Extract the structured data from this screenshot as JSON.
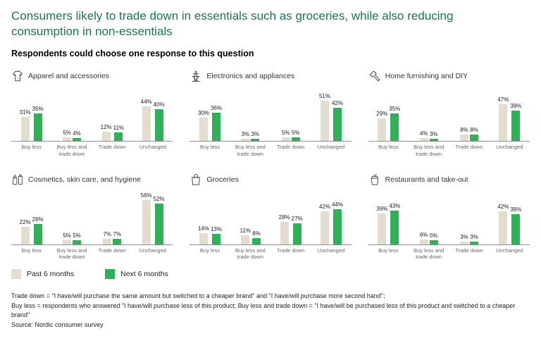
{
  "header": {
    "title": "Consumers likely to trade down in essentials such as groceries, while also reducing consumption in non-essentials",
    "subtitle": "Respondents could choose one response to this question"
  },
  "legend": {
    "items": [
      {
        "label": "Past 6 months",
        "color": "#e2ddcf"
      },
      {
        "label": "Next 6 months",
        "color": "#2eb157"
      }
    ]
  },
  "footnotes": {
    "line1": "Trade down = \"I have/will purchase the same amount but switched to a cheaper brand\" and \"I have/will purchase more second hand\";",
    "line2": "Buy less = respondents who answered \"I have/will purchase less of this product; Buy less and trade down = \"I have/will be purchased less of this product and switched to a cheaper brand\"",
    "source": "Source: Nordic consumer survey"
  },
  "chart_data": [
    {
      "type": "bar",
      "title": "Apparel and accessories",
      "icon": "tshirt-icon",
      "unit": "%",
      "categories": [
        "Buy less",
        "Buy less and trade down",
        "Trade down",
        "Unchanged"
      ],
      "series": [
        {
          "name": "Past 6 months",
          "values": [
            31,
            5,
            12,
            44
          ]
        },
        {
          "name": "Next 6 months",
          "values": [
            35,
            4,
            11,
            40
          ]
        }
      ],
      "ylim": [
        0,
        60
      ]
    },
    {
      "type": "bar",
      "title": "Electronics and appliances",
      "icon": "power-pylon-icon",
      "unit": "%",
      "categories": [
        "Buy less",
        "Buy less and trade down",
        "Trade down",
        "Unchanged"
      ],
      "series": [
        {
          "name": "Past 6 months",
          "values": [
            30,
            3,
            5,
            51
          ]
        },
        {
          "name": "Next 6 months",
          "values": [
            36,
            3,
            5,
            42
          ]
        }
      ],
      "ylim": [
        0,
        60
      ]
    },
    {
      "type": "bar",
      "title": "Home furnishing and DIY",
      "icon": "hammer-icon",
      "unit": "%",
      "categories": [
        "Buy less",
        "Buy less and trade down",
        "Trade down",
        "Unchanged"
      ],
      "series": [
        {
          "name": "Past 6 months",
          "values": [
            29,
            4,
            8,
            47
          ]
        },
        {
          "name": "Next 6 months",
          "values": [
            35,
            3,
            8,
            39
          ]
        }
      ],
      "ylim": [
        0,
        60
      ]
    },
    {
      "type": "bar",
      "title": "Cosmetics, skin care, and hygiene",
      "icon": "cosmetics-bottles-icon",
      "unit": "%",
      "categories": [
        "Buy less",
        "Buy less and trade down",
        "Trade down",
        "Unchanged"
      ],
      "series": [
        {
          "name": "Past 6 months",
          "values": [
            22,
            5,
            7,
            56
          ]
        },
        {
          "name": "Next 6 months",
          "values": [
            26,
            5,
            7,
            52
          ]
        }
      ],
      "ylim": [
        0,
        60
      ]
    },
    {
      "type": "bar",
      "title": "Groceries",
      "icon": "grocery-bag-icon",
      "unit": "%",
      "categories": [
        "Buy less",
        "Buy less and trade down",
        "Trade down",
        "Unchanged"
      ],
      "series": [
        {
          "name": "Past 6 months",
          "values": [
            14,
            11,
            28,
            42
          ]
        },
        {
          "name": "Next 6 months",
          "values": [
            13,
            8,
            27,
            44
          ]
        }
      ],
      "ylim": [
        0,
        60
      ]
    },
    {
      "type": "bar",
      "title": "Restaurants and take-out",
      "icon": "takeout-box-icon",
      "unit": "%",
      "categories": [
        "Buy less",
        "Buy less and trade down",
        "Trade down",
        "Unchanged"
      ],
      "series": [
        {
          "name": "Past 6 months",
          "values": [
            39,
            6,
            3,
            42
          ]
        },
        {
          "name": "Next 6 months",
          "values": [
            43,
            5,
            3,
            38
          ]
        }
      ],
      "ylim": [
        0,
        60
      ]
    }
  ]
}
